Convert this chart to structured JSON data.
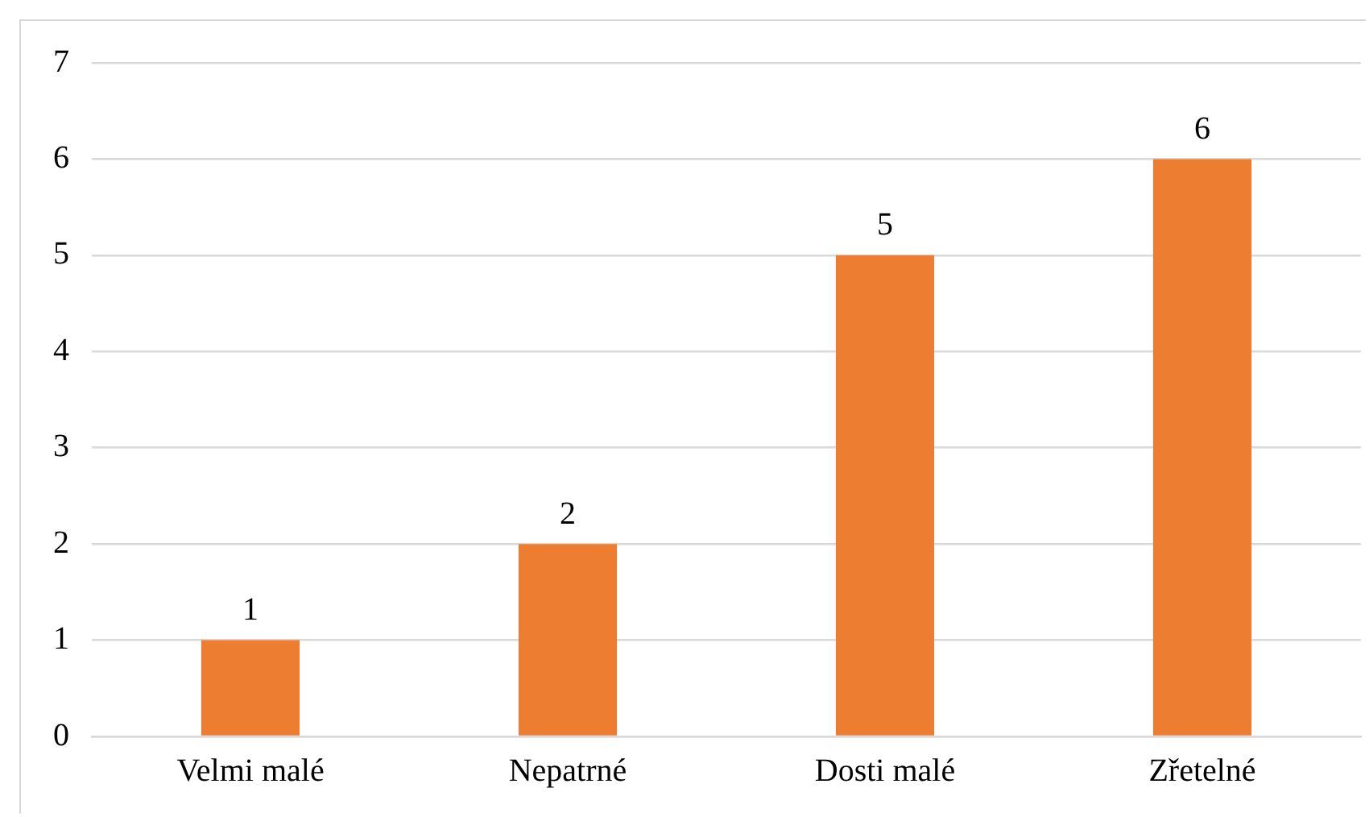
{
  "chart_data": {
    "type": "bar",
    "categories": [
      "Velmi malé",
      "Nepatrné",
      "Dosti malé",
      "Zřetelné"
    ],
    "values": [
      1,
      2,
      5,
      6
    ],
    "color": "#ed7d31",
    "ylim": [
      0,
      7
    ],
    "yticks": [
      0,
      1,
      2,
      3,
      4,
      5,
      6,
      7
    ],
    "grid": "y",
    "data_labels": true
  }
}
